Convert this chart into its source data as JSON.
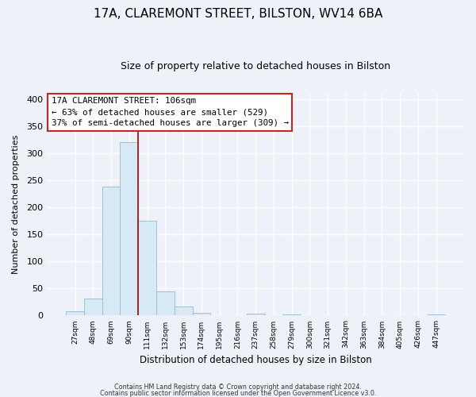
{
  "title": "17A, CLAREMONT STREET, BILSTON, WV14 6BA",
  "subtitle": "Size of property relative to detached houses in Bilston",
  "xlabel": "Distribution of detached houses by size in Bilston",
  "ylabel": "Number of detached properties",
  "bar_labels": [
    "27sqm",
    "48sqm",
    "69sqm",
    "90sqm",
    "111sqm",
    "132sqm",
    "153sqm",
    "174sqm",
    "195sqm",
    "216sqm",
    "237sqm",
    "258sqm",
    "279sqm",
    "300sqm",
    "321sqm",
    "342sqm",
    "363sqm",
    "384sqm",
    "405sqm",
    "426sqm",
    "447sqm"
  ],
  "bar_values": [
    8,
    32,
    238,
    320,
    176,
    45,
    17,
    5,
    0,
    0,
    3,
    0,
    2,
    0,
    0,
    0,
    0,
    0,
    0,
    0,
    2
  ],
  "bar_color": "#d6e9f5",
  "bar_edge_color": "#a0bfd4",
  "ylim": [
    0,
    410
  ],
  "yticks": [
    0,
    50,
    100,
    150,
    200,
    250,
    300,
    350,
    400
  ],
  "property_label": "17A CLAREMONT STREET: 106sqm",
  "annotation_line1": "← 63% of detached houses are smaller (529)",
  "annotation_line2": "37% of semi-detached houses are larger (309) →",
  "footer_line1": "Contains HM Land Registry data © Crown copyright and database right 2024.",
  "footer_line2": "Contains public sector information licensed under the Open Government Licence v3.0.",
  "background_color": "#eef2f8",
  "grid_color": "#ffffff",
  "title_fontsize": 11,
  "subtitle_fontsize": 9,
  "red_line_x": 3.5
}
